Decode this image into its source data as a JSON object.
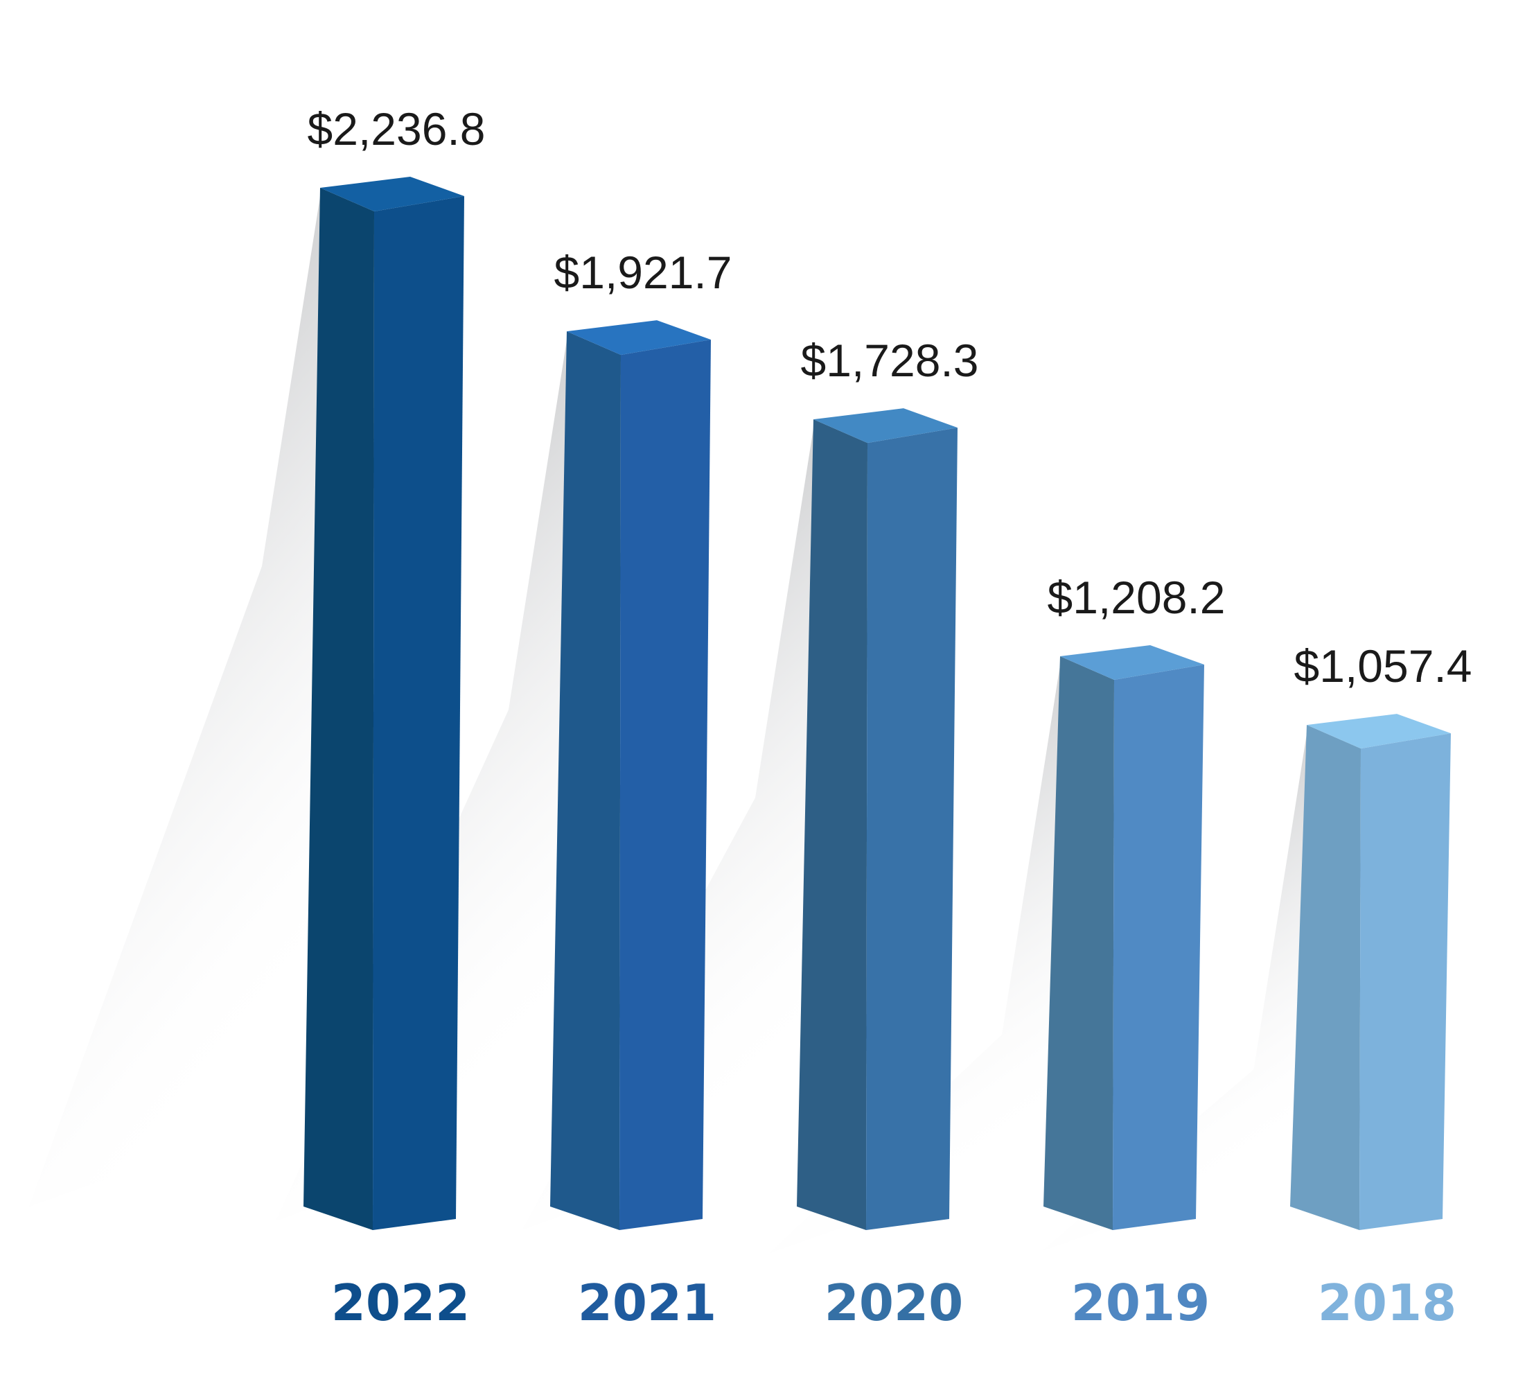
{
  "chart_data": {
    "type": "bar",
    "style": "3d-columns",
    "title": "",
    "xlabel": "",
    "ylabel": "",
    "grid": false,
    "legend": "none",
    "ylim": [
      0,
      2300
    ],
    "categories": [
      "2022",
      "2021",
      "2020",
      "2019",
      "2018"
    ],
    "values": [
      2236.8,
      1921.7,
      1728.3,
      1208.2,
      1057.4
    ],
    "value_labels": [
      "$2,236.8",
      "$1,921.7",
      "$1,728.3",
      "$1,208.2",
      "$1,057.4"
    ],
    "bar_colors": [
      {
        "front": "#0D4F8B",
        "side": "#0B456E",
        "top": "#1360A3",
        "label": "#0E4E8C"
      },
      {
        "front": "#235FA7",
        "side": "#1F598C",
        "top": "#2874C0",
        "label": "#1F5B9E"
      },
      {
        "front": "#3872A8",
        "side": "#2E5F86",
        "top": "#4289C4",
        "label": "#3570A5"
      },
      {
        "front": "#508AC4",
        "side": "#457699",
        "top": "#5B9ED6",
        "label": "#4F87C2"
      },
      {
        "front": "#7DB2DC",
        "side": "#6E9FC2",
        "top": "#8CC7EE",
        "label": "#7FB2DC"
      }
    ]
  }
}
